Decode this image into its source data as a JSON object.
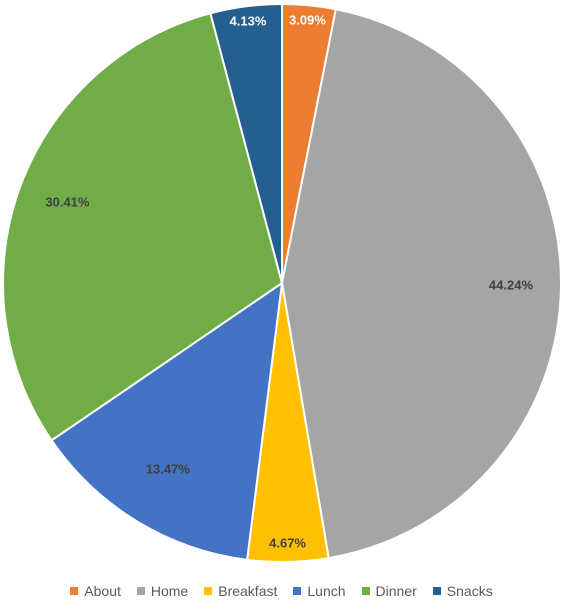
{
  "chart_data": {
    "type": "pie",
    "categories": [
      "About",
      "Home",
      "Breakfast",
      "Lunch",
      "Dinner",
      "Snacks"
    ],
    "values": [
      3.09,
      44.24,
      4.67,
      13.47,
      30.41,
      4.13
    ],
    "labels": [
      "3.09%",
      "44.24%",
      "4.67%",
      "13.47%",
      "30.41%",
      "4.13%"
    ],
    "colors": [
      "#ED7D31",
      "#A5A5A5",
      "#FFC000",
      "#4472C4",
      "#70AD47",
      "#255E91"
    ],
    "label_colors": [
      "#ffffff",
      "#404040",
      "#404040",
      "#404040",
      "#404040",
      "#ffffff"
    ],
    "title": "",
    "legend_position": "bottom"
  }
}
